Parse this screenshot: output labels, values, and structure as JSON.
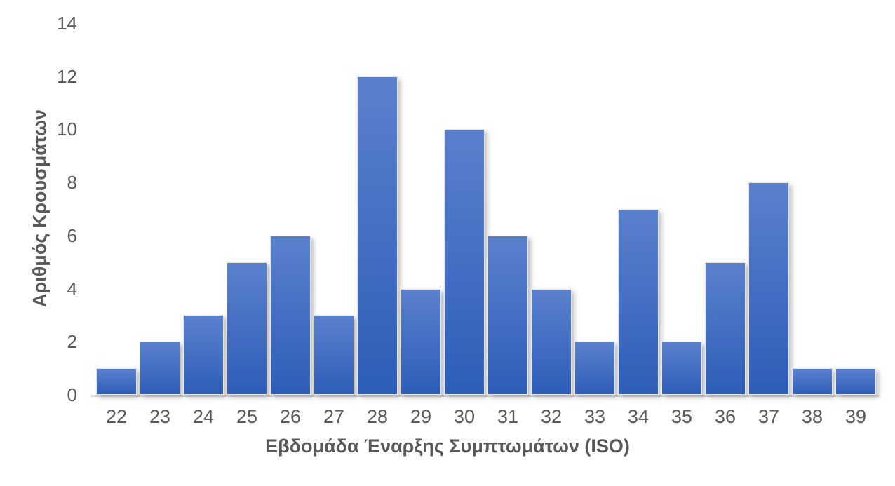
{
  "chart_data": {
    "type": "bar",
    "title": "",
    "categories": [
      "22",
      "23",
      "24",
      "25",
      "26",
      "27",
      "28",
      "29",
      "30",
      "31",
      "32",
      "33",
      "34",
      "35",
      "36",
      "37",
      "38",
      "39"
    ],
    "values": [
      1,
      2,
      3,
      5,
      6,
      3,
      12,
      4,
      10,
      6,
      4,
      2,
      7,
      2,
      5,
      8,
      1,
      1
    ],
    "xlabel": "Εβδομάδα Έναρξης Συμπτωμάτων (ISO)",
    "ylabel": "Αριθμός Κρουσμάτων",
    "ylim": [
      0,
      14
    ],
    "yticks": [
      0,
      2,
      4,
      6,
      8,
      10,
      12,
      14
    ],
    "grid": false,
    "legend": "none",
    "colors": {
      "bar_gradient_top": "#5b81cd",
      "bar_gradient_bottom": "#2e5db8",
      "bar_border": "#e6e6e6",
      "axis_line": "#d9d9d9",
      "text": "#595959",
      "background": "#ffffff"
    }
  }
}
